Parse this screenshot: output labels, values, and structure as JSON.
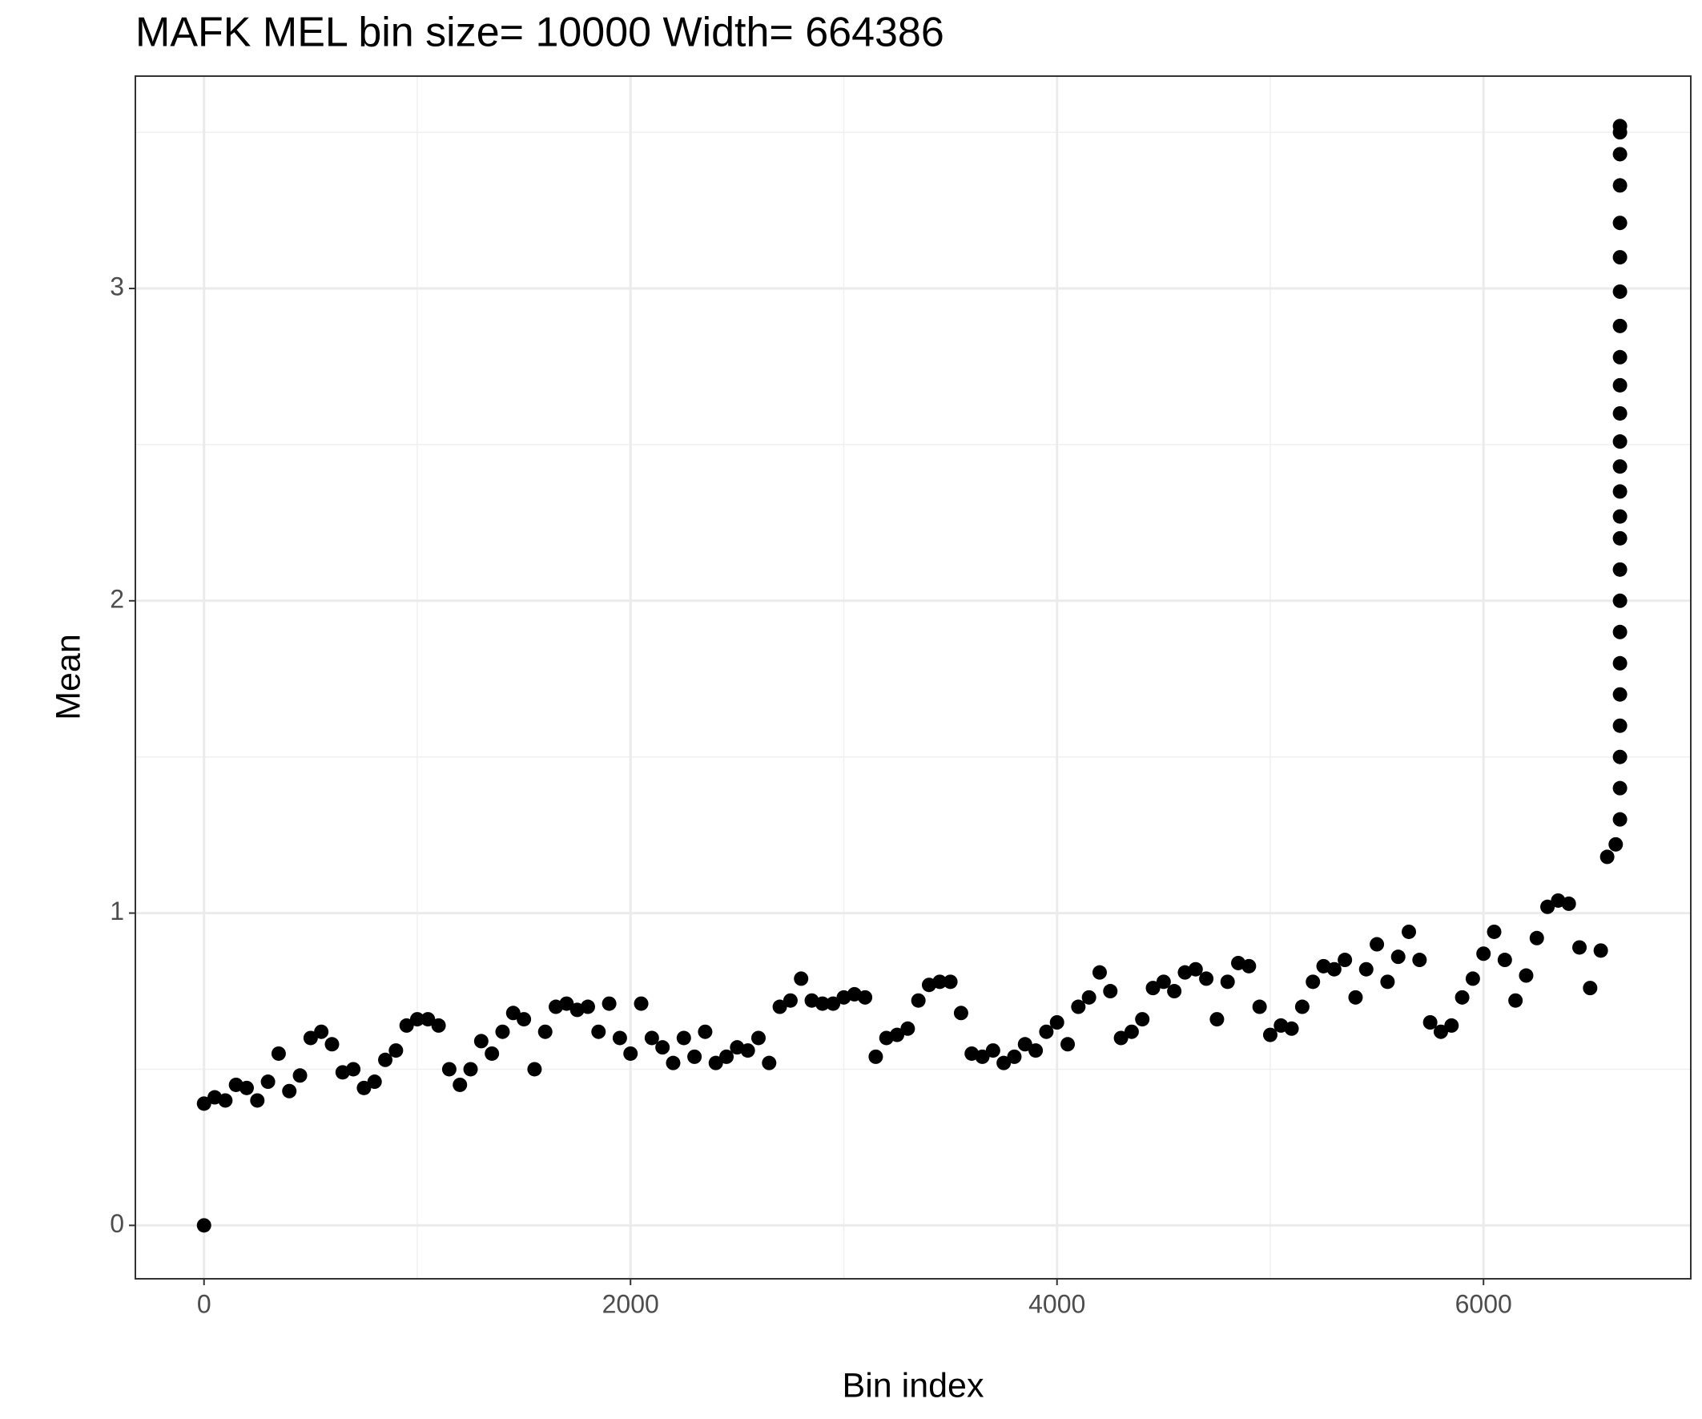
{
  "chart_data": {
    "type": "scatter",
    "title": "MAFK MEL  bin size=  10000  Width=  664386",
    "xlabel": "Bin index",
    "ylabel": "Mean",
    "color": "#000000",
    "x": [
      0,
      0,
      50,
      100,
      150,
      200,
      250,
      300,
      350,
      400,
      450,
      500,
      550,
      600,
      650,
      700,
      750,
      800,
      850,
      900,
      950,
      1000,
      1050,
      1100,
      1150,
      1200,
      1250,
      1300,
      1350,
      1400,
      1450,
      1500,
      1550,
      1600,
      1650,
      1700,
      1750,
      1800,
      1850,
      1900,
      1950,
      2000,
      2050,
      2100,
      2150,
      2200,
      2250,
      2300,
      2350,
      2400,
      2450,
      2500,
      2550,
      2600,
      2650,
      2700,
      2750,
      2800,
      2850,
      2900,
      2950,
      3000,
      3050,
      3100,
      3150,
      3200,
      3250,
      3300,
      3350,
      3400,
      3450,
      3500,
      3550,
      3600,
      3650,
      3700,
      3750,
      3800,
      3850,
      3900,
      3950,
      4000,
      4050,
      4100,
      4150,
      4200,
      4250,
      4300,
      4350,
      4400,
      4450,
      4500,
      4550,
      4600,
      4650,
      4700,
      4750,
      4800,
      4850,
      4900,
      4950,
      5000,
      5050,
      5100,
      5150,
      5200,
      5250,
      5300,
      5350,
      5400,
      5450,
      5500,
      5550,
      5600,
      5650,
      5700,
      5750,
      5800,
      5850,
      5900,
      5950,
      6000,
      6050,
      6100,
      6150,
      6200,
      6250,
      6300,
      6350,
      6400,
      6450,
      6500,
      6550,
      6580,
      6620,
      6640,
      6640,
      6640,
      6640,
      6640,
      6640,
      6640,
      6640,
      6640,
      6640,
      6640,
      6640,
      6640,
      6640,
      6640,
      6640,
      6640,
      6640,
      6640,
      6640,
      6640,
      6640,
      6640,
      6640,
      6640
    ],
    "values": [
      0,
      0.39,
      0.41,
      0.4,
      0.45,
      0.44,
      0.4,
      0.46,
      0.55,
      0.43,
      0.48,
      0.6,
      0.62,
      0.58,
      0.49,
      0.5,
      0.44,
      0.46,
      0.53,
      0.56,
      0.64,
      0.66,
      0.66,
      0.64,
      0.5,
      0.45,
      0.5,
      0.59,
      0.55,
      0.62,
      0.68,
      0.66,
      0.5,
      0.62,
      0.7,
      0.71,
      0.69,
      0.7,
      0.62,
      0.71,
      0.6,
      0.55,
      0.71,
      0.6,
      0.57,
      0.52,
      0.6,
      0.54,
      0.62,
      0.52,
      0.54,
      0.57,
      0.56,
      0.6,
      0.52,
      0.7,
      0.72,
      0.79,
      0.72,
      0.71,
      0.71,
      0.73,
      0.74,
      0.73,
      0.54,
      0.6,
      0.61,
      0.63,
      0.72,
      0.77,
      0.78,
      0.78,
      0.68,
      0.55,
      0.54,
      0.56,
      0.52,
      0.54,
      0.58,
      0.56,
      0.62,
      0.65,
      0.58,
      0.7,
      0.73,
      0.81,
      0.75,
      0.6,
      0.62,
      0.66,
      0.76,
      0.78,
      0.75,
      0.81,
      0.82,
      0.79,
      0.66,
      0.78,
      0.84,
      0.83,
      0.7,
      0.61,
      0.64,
      0.63,
      0.7,
      0.78,
      0.83,
      0.82,
      0.85,
      0.73,
      0.82,
      0.9,
      0.78,
      0.86,
      0.94,
      0.85,
      0.65,
      0.62,
      0.64,
      0.73,
      0.79,
      0.87,
      0.94,
      0.85,
      0.72,
      0.8,
      0.92,
      1.02,
      1.04,
      1.03,
      0.89,
      0.76,
      0.88,
      1.18,
      1.22,
      1.3,
      1.4,
      1.5,
      1.6,
      1.7,
      1.8,
      1.9,
      2.0,
      2.1,
      2.2,
      2.27,
      2.35,
      2.43,
      2.51,
      2.6,
      2.69,
      2.78,
      2.88,
      2.99,
      3.1,
      3.21,
      3.33,
      3.43,
      3.5,
      3.52
    ],
    "xlim": [
      -322,
      6972
    ],
    "ylim": [
      -0.171,
      3.68
    ],
    "xticks": [
      0,
      2000,
      4000,
      6000
    ],
    "yticks": [
      0,
      1,
      2,
      3
    ],
    "xminor": [
      1000,
      3000,
      5000
    ],
    "yminor": [
      0.5,
      1.5,
      2.5,
      3.5
    ],
    "grid": true
  }
}
